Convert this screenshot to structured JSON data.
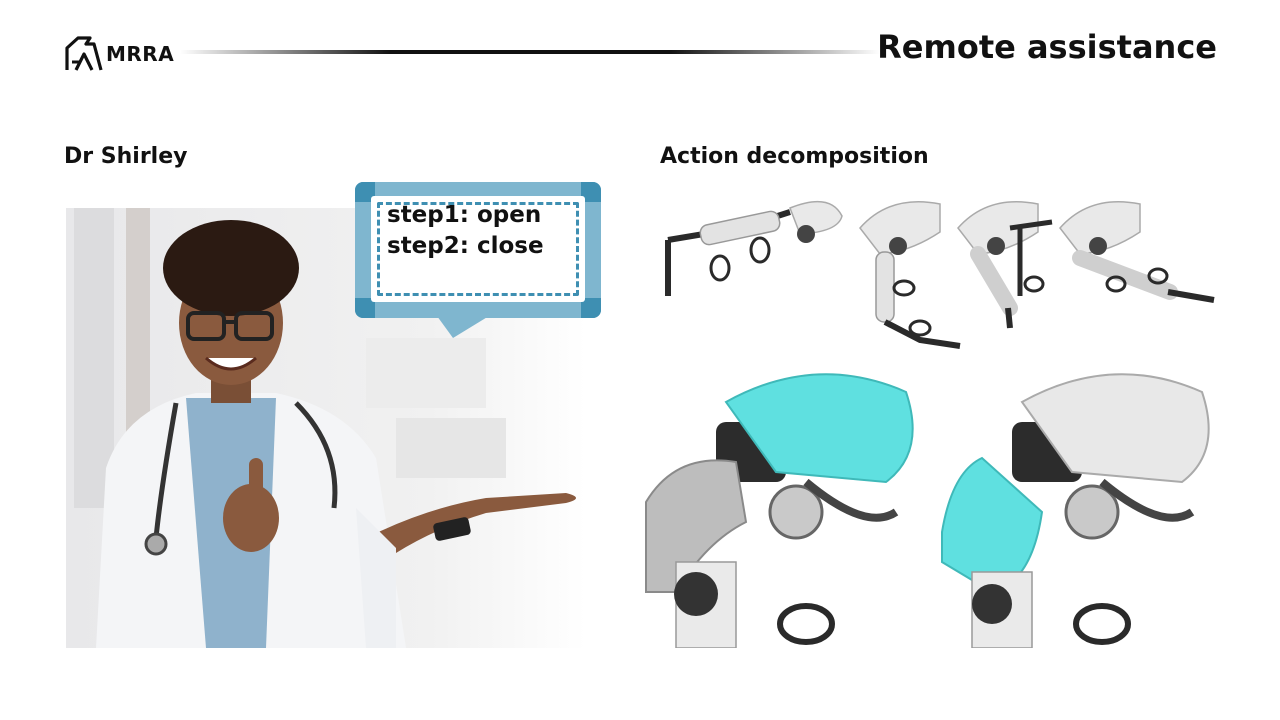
{
  "brand": {
    "logo_text": "MRRA"
  },
  "header": {
    "title": "Remote assistance"
  },
  "left_section": {
    "label": "Dr Shirley",
    "speech_bubble": {
      "line1": "step1: open",
      "line2": "step2: close"
    }
  },
  "right_section": {
    "label": "Action decomposition"
  },
  "colors": {
    "accent_blue": "#3e8fb2",
    "bubble_frame": "#7fb6cf",
    "teal_shell": "#5fe0e0",
    "text": "#111111"
  },
  "icons": {
    "logo": "mrra-logo-icon"
  }
}
